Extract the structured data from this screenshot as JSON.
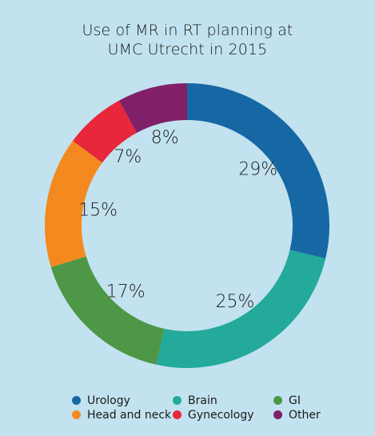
{
  "chart_data": {
    "type": "pie",
    "donut": true,
    "title_lines": [
      "Use of MR in RT planning at",
      "UMC Utrecht in 2015"
    ],
    "categories": [
      "Urology",
      "Brain",
      "GI",
      "Head and neck",
      "Gynecology",
      "Other"
    ],
    "values": [
      29,
      25,
      17,
      15,
      7,
      8
    ],
    "data_labels": [
      "29%",
      "25%",
      "17%",
      "15%",
      "7%",
      "8%"
    ],
    "colors": [
      "#1668a4",
      "#23aa9a",
      "#4d9747",
      "#f48a1f",
      "#e8273a",
      "#7f2069"
    ],
    "legend": {
      "placement": "bottom",
      "items": [
        {
          "label": "Urology",
          "color": "#1668a4"
        },
        {
          "label": "Brain",
          "color": "#23aa9a"
        },
        {
          "label": "GI",
          "color": "#4d9747"
        },
        {
          "label": "Head and neck",
          "color": "#f48a1f"
        },
        {
          "label": "Gynecology",
          "color": "#e8273a"
        },
        {
          "label": "Other",
          "color": "#7f2069"
        }
      ]
    },
    "background": "#c2e2ef"
  }
}
